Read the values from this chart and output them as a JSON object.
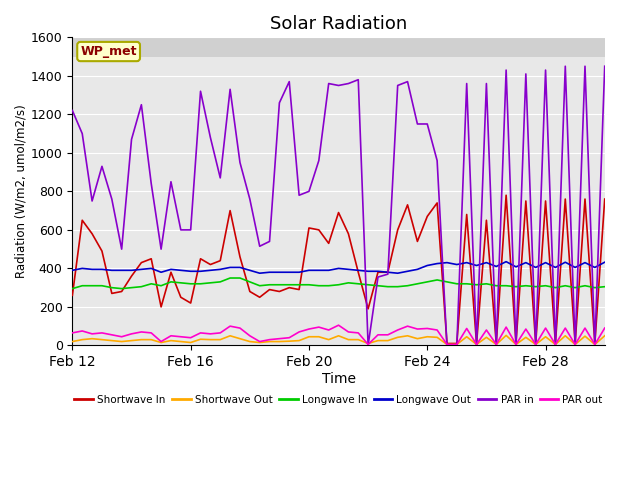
{
  "title": "Solar Radiation",
  "ylabel": "Radiation (W/m2, umol/m2/s)",
  "xlabel": "Time",
  "ylim": [
    0,
    1600
  ],
  "yticks": [
    0,
    200,
    400,
    600,
    800,
    1000,
    1200,
    1400,
    1600
  ],
  "xtick_labels": [
    "Feb 12",
    "Feb 16",
    "Feb 20",
    "Feb 24",
    "Feb 28"
  ],
  "station_label": "WP_met",
  "plot_bg": "#e8e8e8",
  "upper_bg": "#d0d0d0",
  "legend": [
    {
      "label": "Shortwave In",
      "color": "#cc0000"
    },
    {
      "label": "Shortwave Out",
      "color": "#ffaa00"
    },
    {
      "label": "Longwave In",
      "color": "#00cc00"
    },
    {
      "label": "Longwave Out",
      "color": "#0000cc"
    },
    {
      "label": "PAR in",
      "color": "#8800cc"
    },
    {
      "label": "PAR out",
      "color": "#ff00cc"
    }
  ],
  "shortwave_in": [
    260,
    650,
    580,
    490,
    270,
    280,
    360,
    430,
    450,
    200,
    380,
    250,
    220,
    450,
    420,
    440,
    700,
    460,
    280,
    250,
    290,
    280,
    300,
    290,
    610,
    600,
    530,
    690,
    580,
    380,
    190,
    380,
    380,
    600,
    730,
    540,
    670,
    740,
    10,
    10,
    680,
    10,
    650,
    10,
    780,
    10,
    750,
    10,
    750,
    10,
    760,
    10,
    760,
    10,
    760
  ],
  "shortwave_out": [
    20,
    30,
    35,
    30,
    25,
    20,
    25,
    30,
    30,
    15,
    25,
    20,
    15,
    32,
    30,
    30,
    50,
    35,
    20,
    15,
    20,
    20,
    22,
    25,
    45,
    45,
    30,
    50,
    30,
    30,
    10,
    25,
    25,
    42,
    50,
    35,
    45,
    42,
    5,
    5,
    45,
    5,
    42,
    5,
    52,
    5,
    42,
    5,
    45,
    5,
    50,
    5,
    48,
    5,
    50
  ],
  "longwave_in": [
    295,
    310,
    310,
    310,
    300,
    295,
    300,
    305,
    320,
    310,
    330,
    325,
    320,
    320,
    325,
    330,
    350,
    350,
    330,
    310,
    315,
    315,
    315,
    315,
    315,
    310,
    310,
    315,
    325,
    320,
    315,
    310,
    305,
    305,
    310,
    320,
    330,
    340,
    330,
    320,
    320,
    315,
    320,
    310,
    310,
    305,
    310,
    305,
    310,
    300,
    310,
    300,
    310,
    300,
    305
  ],
  "longwave_out": [
    390,
    400,
    395,
    395,
    390,
    390,
    390,
    395,
    400,
    380,
    395,
    390,
    385,
    385,
    390,
    395,
    405,
    405,
    390,
    375,
    380,
    380,
    380,
    380,
    390,
    390,
    390,
    400,
    395,
    390,
    385,
    385,
    380,
    375,
    385,
    395,
    415,
    425,
    430,
    420,
    430,
    415,
    430,
    410,
    435,
    408,
    430,
    405,
    430,
    405,
    432,
    405,
    430,
    405,
    432
  ],
  "par_in": [
    1220,
    1100,
    750,
    930,
    760,
    500,
    1070,
    1250,
    840,
    500,
    850,
    600,
    600,
    1320,
    1080,
    870,
    1330,
    950,
    760,
    515,
    540,
    1260,
    1370,
    780,
    800,
    960,
    1360,
    1350,
    1360,
    1380,
    0,
    355,
    370,
    1350,
    1370,
    1150,
    1150,
    960,
    0,
    0,
    1360,
    0,
    1360,
    0,
    1430,
    0,
    1410,
    0,
    1430,
    0,
    1450,
    0,
    1450,
    0,
    1450
  ],
  "par_out": [
    65,
    75,
    60,
    65,
    55,
    45,
    60,
    70,
    65,
    20,
    50,
    45,
    40,
    65,
    60,
    65,
    100,
    90,
    50,
    20,
    30,
    35,
    40,
    70,
    85,
    95,
    80,
    105,
    70,
    65,
    5,
    55,
    55,
    80,
    100,
    85,
    88,
    80,
    5,
    5,
    88,
    5,
    80,
    5,
    95,
    5,
    85,
    5,
    90,
    5,
    90,
    5,
    90,
    5,
    90
  ]
}
